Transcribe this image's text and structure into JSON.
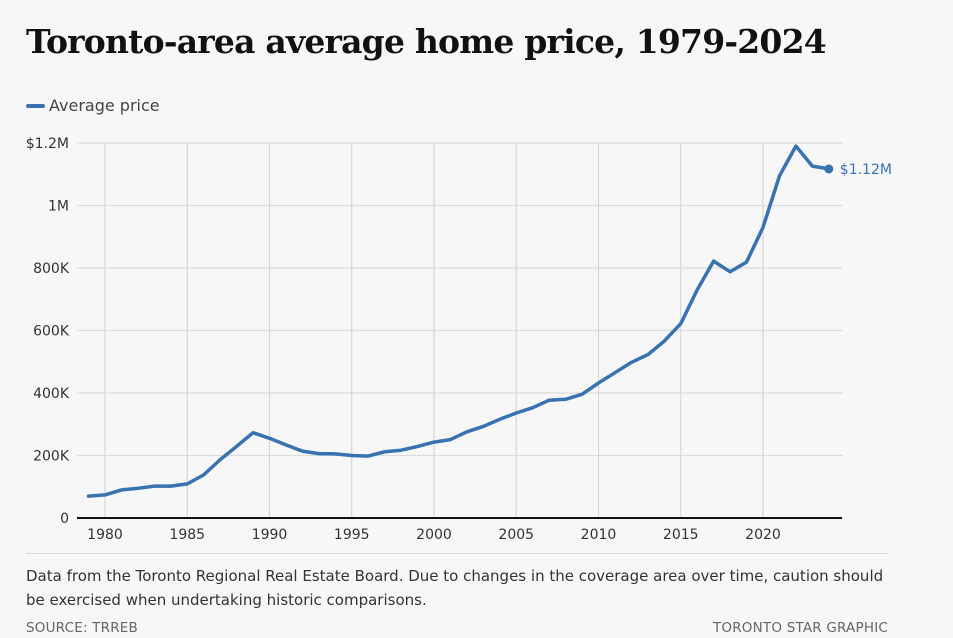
{
  "header": {
    "title": "Toronto-area average home price, 1979-2024"
  },
  "legend": {
    "items": [
      {
        "label": "Average price",
        "color": "#3872b0"
      }
    ]
  },
  "footer": {
    "note": "Data from the Toronto Regional Real Estate Board. Due to changes in the coverage area over time, caution should be exercised when undertaking historic comparisons.",
    "source": "SOURCE: TRREB",
    "credit": "TORONTO STAR GRAPHIC"
  },
  "chart_data": {
    "type": "line",
    "title": "Toronto-area average home price, 1979-2024",
    "xlabel": "",
    "ylabel": "",
    "xlim": [
      1979,
      2024
    ],
    "ylim": [
      0,
      1200000
    ],
    "grid": true,
    "legend_position": "top-left",
    "x_ticks": [
      1980,
      1985,
      1990,
      1995,
      2000,
      2005,
      2010,
      2015,
      2020
    ],
    "x_tick_labels": [
      "1980",
      "1985",
      "1990",
      "1995",
      "2000",
      "2005",
      "2010",
      "2015",
      "2020"
    ],
    "y_ticks": [
      0,
      200000,
      400000,
      600000,
      800000,
      1000000,
      1200000
    ],
    "y_tick_labels": [
      "0",
      "200K",
      "400K",
      "600K",
      "800K",
      "1M",
      "$1.2M"
    ],
    "x": [
      1979,
      1980,
      1981,
      1982,
      1983,
      1984,
      1985,
      1986,
      1987,
      1988,
      1989,
      1990,
      1991,
      1992,
      1993,
      1994,
      1995,
      1996,
      1997,
      1998,
      1999,
      2000,
      2001,
      2002,
      2003,
      2004,
      2005,
      2006,
      2007,
      2008,
      2009,
      2010,
      2011,
      2012,
      2013,
      2014,
      2015,
      2016,
      2017,
      2018,
      2019,
      2020,
      2021,
      2022,
      2023,
      2024
    ],
    "series": [
      {
        "name": "Average price",
        "color": "#3872b0",
        "values": [
          70000,
          74000,
          90000,
          95000,
          102000,
          102000,
          109000,
          138000,
          187000,
          229000,
          273000,
          255000,
          234000,
          214000,
          206000,
          205000,
          200000,
          198000,
          212000,
          217000,
          229000,
          243000,
          251000,
          276000,
          293000,
          316000,
          336000,
          353000,
          377000,
          380000,
          396000,
          432000,
          465000,
          498000,
          523000,
          566000,
          622000,
          730000,
          822000,
          788000,
          819000,
          930000,
          1095000,
          1190000,
          1126000,
          1117000
        ]
      }
    ],
    "annotations": [
      {
        "x": 2024,
        "label": "$1.12M",
        "type": "end-point"
      }
    ]
  }
}
